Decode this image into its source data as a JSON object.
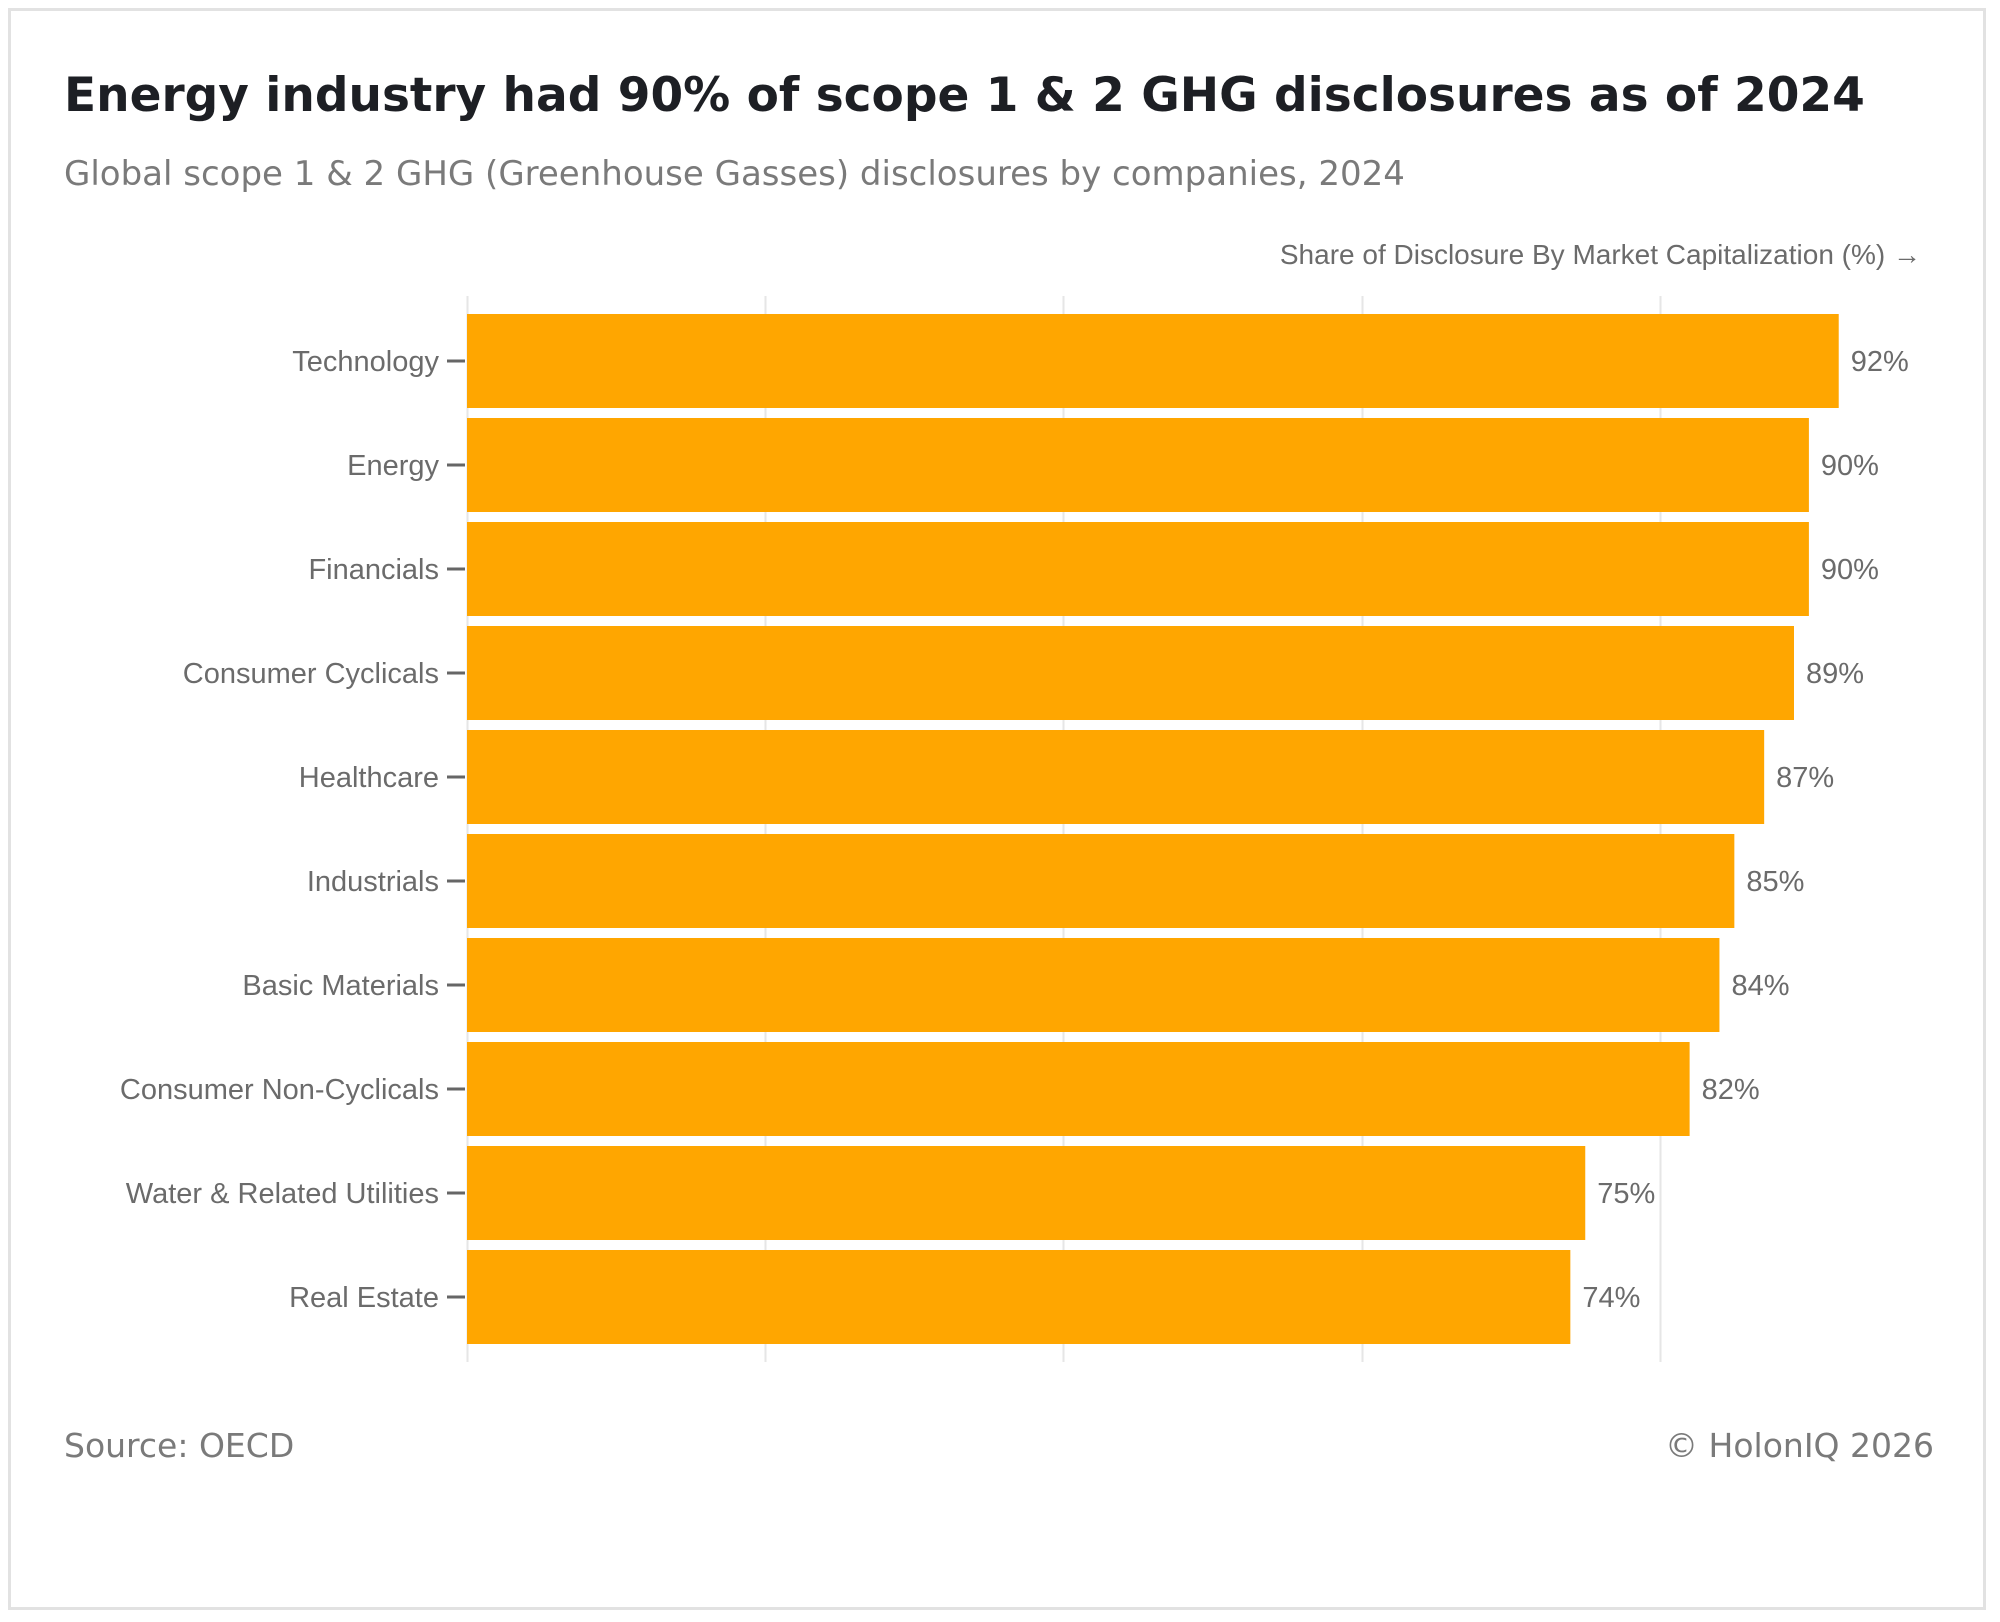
{
  "header": {
    "title": "Energy industry had 90% of scope 1 & 2 GHG disclosures as of 2024",
    "subtitle": "Global scope 1 & 2 GHG (Greenhouse Gasses) disclosures by companies, 2024"
  },
  "footer": {
    "source": "Source: OECD",
    "copyright": "© HolonIQ 2026"
  },
  "colors": {
    "bar": "#FFA600",
    "grid": "#e6e6e6",
    "label": "#6b6b6b"
  },
  "chart_data": {
    "type": "bar",
    "orientation": "horizontal",
    "title": "Energy industry had 90% of scope 1 & 2 GHG disclosures as of 2024",
    "subtitle": "Global scope 1 & 2 GHG (Greenhouse Gasses) disclosures by companies, 2024",
    "xlabel": "Share of Disclosure By Market Capitalization (%) →",
    "ylabel": "",
    "xlim": [
      0,
      100
    ],
    "grid": true,
    "legend": "none",
    "categories": [
      "Technology",
      "Energy",
      "Financials",
      "Consumer Cyclicals",
      "Healthcare",
      "Industrials",
      "Basic Materials",
      "Consumer Non-Cyclicals",
      "Water & Related Utilities",
      "Real Estate"
    ],
    "values": [
      92,
      90,
      90,
      89,
      87,
      85,
      84,
      82,
      75,
      74
    ],
    "data_labels": [
      "92%",
      "90%",
      "90%",
      "89%",
      "87%",
      "85%",
      "84%",
      "82%",
      "75%",
      "74%"
    ]
  }
}
